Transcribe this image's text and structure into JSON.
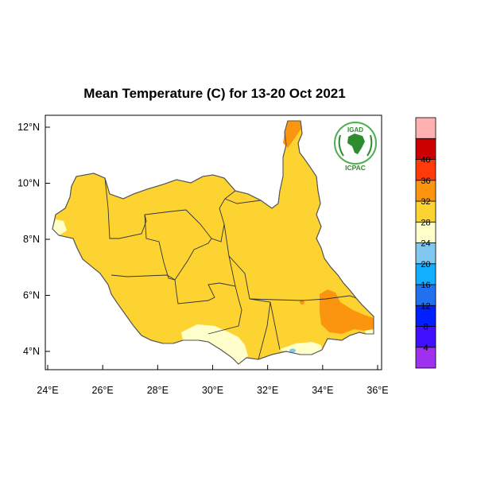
{
  "title": "Mean Temperature (C) for 13-20 Oct 2021",
  "map": {
    "x_ticks": [
      "24°E",
      "26°E",
      "28°E",
      "30°E",
      "32°E",
      "34°E",
      "36°E"
    ],
    "y_ticks": [
      "12°N",
      "10°N",
      "8°N",
      "6°N",
      "4°N"
    ],
    "lon_range": [
      24,
      36
    ],
    "lat_range": [
      3.5,
      12.5
    ],
    "dominant_band": "24-28",
    "colors": {
      "band_20_24": "#ffffcc",
      "band_24_28": "#fdd331",
      "band_28_32": "#fb950f",
      "border": "#333333"
    }
  },
  "legend": {
    "labels": [
      "4",
      "8",
      "12",
      "16",
      "20",
      "24",
      "28",
      "32",
      "36",
      "40"
    ],
    "colors": [
      "#a030f0",
      "#4010ff",
      "#0020ff",
      "#2070f0",
      "#10b0ff",
      "#80c8f0",
      "#ffffcc",
      "#fdd331",
      "#fb950f",
      "#fe3a0a",
      "#cc0000",
      "#ffb0b0"
    ]
  },
  "logo": {
    "top_text": "IGAD",
    "bottom_text": "ICPAC"
  }
}
